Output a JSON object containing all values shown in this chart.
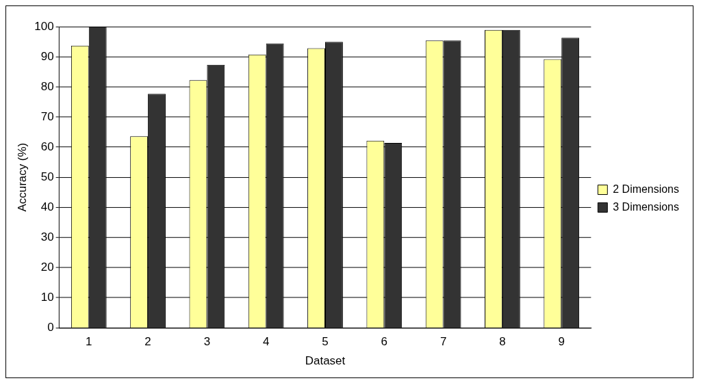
{
  "chart_data": {
    "type": "bar",
    "xlabel": "Dataset",
    "ylabel": "Accuracy (%)",
    "categories": [
      "1",
      "2",
      "3",
      "4",
      "5",
      "6",
      "7",
      "8",
      "9"
    ],
    "series": [
      {
        "name": "2 Dimensions",
        "color": "#ffff99",
        "values": [
          93.7,
          63.6,
          82.2,
          90.7,
          92.8,
          62.1,
          95.4,
          98.9,
          89.2
        ]
      },
      {
        "name": "3 Dimensions",
        "color": "#333333",
        "values": [
          100,
          77.7,
          87.3,
          94.4,
          94.9,
          61.4,
          95.4,
          98.9,
          96.3
        ]
      }
    ],
    "ylim": [
      0,
      100
    ],
    "yticks": [
      0,
      10,
      20,
      30,
      40,
      50,
      60,
      70,
      80,
      90,
      100
    ],
    "grid": "y",
    "legend": "right"
  }
}
